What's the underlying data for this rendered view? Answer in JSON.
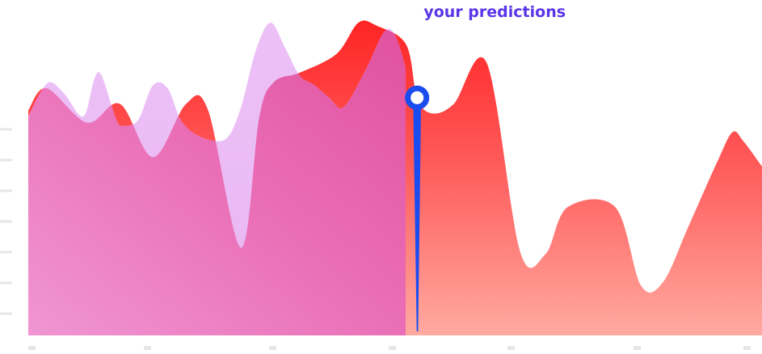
{
  "chart_data": {
    "type": "area",
    "title": "",
    "xlabel": "",
    "ylabel": "",
    "grid": false,
    "xlim": [
      0,
      100
    ],
    "ylim": [
      0,
      100
    ],
    "annotation": "your predictions",
    "annotation_x": 53,
    "split_x": 51.5,
    "series": [
      {
        "name": "",
        "color": "#ff2a2a",
        "x": [
          0,
          2.5,
          8,
          12.5,
          17,
          21.5,
          24.5,
          29,
          31.5,
          33.5,
          37,
          42,
          45,
          47.5,
          51.5,
          53,
          55,
          58,
          62.5,
          67,
          70.5,
          73.5,
          80,
          83.5,
          86.5,
          90,
          94,
          96,
          97.5,
          100
        ],
        "values": [
          72,
          79,
          68,
          74,
          57,
          74,
          72,
          28,
          70,
          81,
          84,
          90,
          100,
          99,
          93,
          76,
          71,
          74,
          87,
          27,
          26,
          41,
          41,
          16,
          17,
          35,
          56,
          65,
          62,
          54
        ]
      },
      {
        "name": "",
        "color": "#e84fa6",
        "x": [
          0,
          1.5,
          3,
          5,
          7.5,
          9,
          10,
          12,
          13,
          15,
          17,
          19,
          21,
          24,
          27,
          29,
          31,
          33,
          35,
          37,
          39,
          41,
          43,
          46,
          48.5,
          50,
          51.5
        ],
        "values": [
          70,
          77,
          81,
          77,
          70,
          82,
          83,
          69,
          67,
          69,
          80,
          79,
          68,
          63,
          63,
          73,
          91,
          100,
          92,
          83,
          80,
          76,
          73,
          85,
          97,
          96,
          85
        ]
      }
    ]
  }
}
